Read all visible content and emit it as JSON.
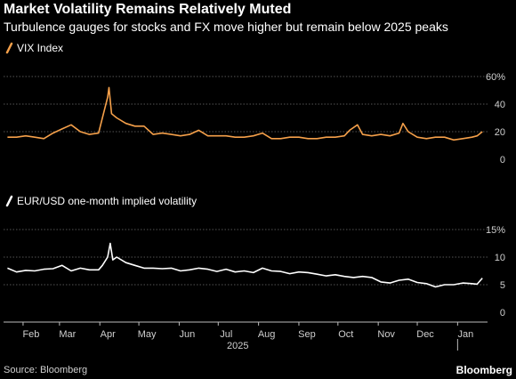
{
  "title": "Market Volatility Remains Relatively Muted",
  "subtitle": "Turbulence gauges for stocks and FX move higher but remain below 2025 peaks",
  "source": "Source: Bloomberg",
  "brand": "Bloomberg",
  "colors": {
    "background": "#000000",
    "vix": "#f5a04a",
    "eurusd": "#ffffff",
    "grid": "#555555",
    "text": "#ffffff",
    "tick": "#cfcfcf"
  },
  "chart_data": [
    {
      "type": "line",
      "series": [
        {
          "name": "VIX Index",
          "x": [
            "2025-01-20",
            "2025-01-27",
            "2025-02-03",
            "2025-02-10",
            "2025-02-17",
            "2025-02-24",
            "2025-03-03",
            "2025-03-10",
            "2025-03-17",
            "2025-03-24",
            "2025-03-31",
            "2025-04-03",
            "2025-04-07",
            "2025-04-08",
            "2025-04-10",
            "2025-04-14",
            "2025-04-21",
            "2025-04-28",
            "2025-05-05",
            "2025-05-12",
            "2025-05-19",
            "2025-05-26",
            "2025-06-02",
            "2025-06-09",
            "2025-06-16",
            "2025-06-23",
            "2025-06-30",
            "2025-07-07",
            "2025-07-14",
            "2025-07-21",
            "2025-07-28",
            "2025-08-04",
            "2025-08-11",
            "2025-08-18",
            "2025-08-25",
            "2025-09-01",
            "2025-09-08",
            "2025-09-15",
            "2025-09-22",
            "2025-09-29",
            "2025-10-06",
            "2025-10-10",
            "2025-10-16",
            "2025-10-20",
            "2025-10-27",
            "2025-11-03",
            "2025-11-10",
            "2025-11-17",
            "2025-11-20",
            "2025-11-24",
            "2025-12-01",
            "2025-12-08",
            "2025-12-15",
            "2025-12-22",
            "2025-12-29",
            "2026-01-05",
            "2026-01-12",
            "2026-01-16",
            "2026-01-20"
          ],
          "y": [
            16,
            16,
            17,
            16,
            15,
            19,
            22,
            25,
            20,
            18,
            19,
            30,
            45,
            52,
            33,
            30,
            26,
            24,
            24,
            18,
            19,
            18,
            17,
            18,
            21,
            17,
            17,
            17,
            16,
            16,
            17,
            19,
            15,
            15,
            16,
            16,
            15,
            15,
            16,
            16,
            17,
            21,
            25,
            18,
            17,
            18,
            17,
            19,
            26,
            20,
            16,
            15,
            16,
            16,
            14,
            15,
            16,
            17,
            20
          ]
        }
      ],
      "ylim": [
        0,
        60
      ],
      "yticks": [
        0,
        20,
        40,
        60
      ],
      "ytick_labels": [
        "0",
        "20",
        "40",
        "60%"
      ],
      "grid": true,
      "legend": "top-left"
    },
    {
      "type": "line",
      "series": [
        {
          "name": "EUR/USD one-month implied volatility",
          "x": [
            "2025-01-20",
            "2025-01-27",
            "2025-02-03",
            "2025-02-10",
            "2025-02-17",
            "2025-02-24",
            "2025-03-03",
            "2025-03-10",
            "2025-03-17",
            "2025-03-24",
            "2025-03-31",
            "2025-04-03",
            "2025-04-07",
            "2025-04-09",
            "2025-04-11",
            "2025-04-14",
            "2025-04-21",
            "2025-04-28",
            "2025-05-05",
            "2025-05-12",
            "2025-05-19",
            "2025-05-26",
            "2025-06-02",
            "2025-06-09",
            "2025-06-16",
            "2025-06-23",
            "2025-06-30",
            "2025-07-07",
            "2025-07-14",
            "2025-07-21",
            "2025-07-28",
            "2025-08-04",
            "2025-08-11",
            "2025-08-18",
            "2025-08-25",
            "2025-09-01",
            "2025-09-08",
            "2025-09-15",
            "2025-09-22",
            "2025-09-29",
            "2025-10-06",
            "2025-10-13",
            "2025-10-20",
            "2025-10-27",
            "2025-11-03",
            "2025-11-10",
            "2025-11-17",
            "2025-11-24",
            "2025-12-01",
            "2025-12-08",
            "2025-12-15",
            "2025-12-22",
            "2025-12-29",
            "2026-01-05",
            "2026-01-12",
            "2026-01-16",
            "2026-01-20"
          ],
          "y": [
            8,
            7.3,
            7.6,
            7.5,
            7.8,
            7.9,
            8.5,
            7.5,
            8,
            7.7,
            7.7,
            8.5,
            10,
            12.5,
            9.5,
            10,
            9,
            8.5,
            8,
            8,
            7.9,
            8,
            7.5,
            7.7,
            8,
            7.8,
            7.4,
            7.8,
            7.3,
            7.5,
            7.2,
            8,
            7.5,
            7.4,
            7,
            7.3,
            7.2,
            6.9,
            6.6,
            6.8,
            6.5,
            6.3,
            6.5,
            6.3,
            5.5,
            5.3,
            5.8,
            6,
            5.4,
            5.2,
            4.6,
            5,
            5,
            5.3,
            5.2,
            5.1,
            6.2
          ]
        }
      ],
      "ylim": [
        0,
        15
      ],
      "yticks": [
        0,
        5,
        10,
        15
      ],
      "ytick_labels": [
        "0",
        "5",
        "10",
        "15%"
      ],
      "grid": true,
      "legend": "top-left"
    }
  ],
  "x_axis": {
    "range": [
      "2025-01-17",
      "2026-01-24"
    ],
    "ticks": [
      {
        "date": "2025-02-01",
        "label": "Feb"
      },
      {
        "date": "2025-03-01",
        "label": "Mar"
      },
      {
        "date": "2025-04-01",
        "label": "Apr"
      },
      {
        "date": "2025-05-01",
        "label": "May"
      },
      {
        "date": "2025-06-01",
        "label": "Jun"
      },
      {
        "date": "2025-07-01",
        "label": "Jul"
      },
      {
        "date": "2025-08-01",
        "label": "Aug"
      },
      {
        "date": "2025-09-01",
        "label": "Sep"
      },
      {
        "date": "2025-10-01",
        "label": "Oct"
      },
      {
        "date": "2025-11-01",
        "label": "Nov"
      },
      {
        "date": "2025-12-01",
        "label": "Dec"
      },
      {
        "date": "2026-01-01",
        "label": "Jan"
      }
    ],
    "year_labels": [
      {
        "date": "2025-07-16",
        "label": "2025"
      }
    ],
    "year_dividers": [
      "2026-01-01"
    ]
  }
}
